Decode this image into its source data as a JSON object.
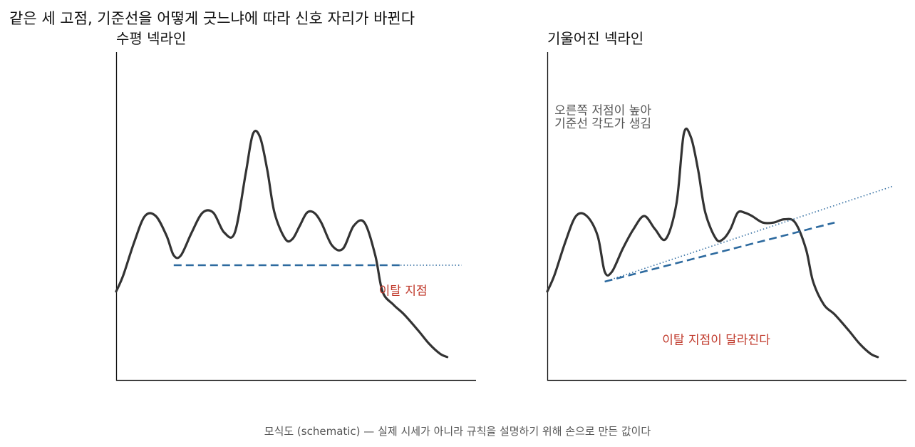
{
  "suptitle": "같은 세 고점, 기준선을 어떻게 긋느냐에 따라 신호 자리가 바뀐다",
  "caption": "모식도 (schematic) — 실제 시세가 아니라 규칙을 설명하기 위해 손으로 만든 값이다",
  "colors": {
    "price": "#333333",
    "neckline": "#2d6a9f",
    "breakout": "#c0392b",
    "annotation": "#555555"
  },
  "chart_data": [
    {
      "type": "line",
      "title": "수평 넥라인",
      "xlabel": "",
      "ylabel": "",
      "xlim": [
        0,
        100
      ],
      "ylim": [
        0,
        100
      ],
      "grid": false,
      "series": [
        {
          "x": [
            0,
            2,
            5,
            8,
            11,
            14,
            16,
            18,
            21,
            24,
            27,
            30,
            33,
            36,
            38,
            40,
            42,
            44,
            47,
            49,
            51,
            53,
            55,
            57,
            60,
            63,
            66,
            69,
            72,
            74,
            77,
            80,
            84,
            87,
            90,
            92
          ],
          "y": [
            27,
            32,
            42,
            50,
            50,
            44,
            38,
            38,
            45,
            51,
            51,
            45,
            45,
            63,
            75,
            74,
            64,
            51,
            43,
            43,
            47,
            51,
            51,
            48,
            41,
            40,
            47,
            48,
            38,
            27,
            23,
            20,
            15,
            11,
            8,
            7
          ]
        }
      ],
      "neckline": {
        "x": [
          16,
          79
        ],
        "y": [
          35,
          35
        ]
      },
      "neckline_extension": {
        "x": [
          79,
          96
        ],
        "y": [
          35,
          35
        ]
      },
      "annotations": [
        {
          "text": "이탈 지점",
          "x": 73,
          "y": 26
        }
      ]
    },
    {
      "type": "line",
      "title": "기울어진 넥라인",
      "xlabel": "",
      "ylabel": "",
      "xlim": [
        0,
        100
      ],
      "ylim": [
        0,
        100
      ],
      "grid": false,
      "series": [
        {
          "x": [
            0,
            2,
            5,
            8,
            11,
            14,
            16,
            18,
            21,
            24,
            27,
            30,
            33,
            36,
            38,
            40,
            42,
            44,
            47,
            49,
            51,
            53,
            55,
            57,
            60,
            63,
            66,
            69,
            72,
            74,
            77,
            80,
            84,
            87,
            90,
            92
          ],
          "y": [
            27,
            32,
            42,
            50,
            50,
            44,
            33,
            33,
            40,
            46,
            50,
            46,
            43,
            54,
            75,
            74,
            64,
            51,
            43,
            43,
            46,
            51,
            51,
            50,
            48,
            48,
            49,
            48,
            40,
            30,
            23,
            20,
            15,
            11,
            8,
            7
          ]
        }
      ],
      "neckline": {
        "x": [
          16,
          80
        ],
        "y": [
          30,
          48
        ]
      },
      "neckline_extension": {
        "x": [
          16,
          96
        ],
        "y": [
          30,
          59
        ]
      },
      "annotations": [
        {
          "text": "오른쪽 저점이 높아",
          "x": 2,
          "y": 81
        },
        {
          "text": "기준선 각도가 생김",
          "x": 2,
          "y": 77
        },
        {
          "text": "이탈 지점이 달라진다",
          "x": 32,
          "y": 11
        }
      ]
    }
  ]
}
